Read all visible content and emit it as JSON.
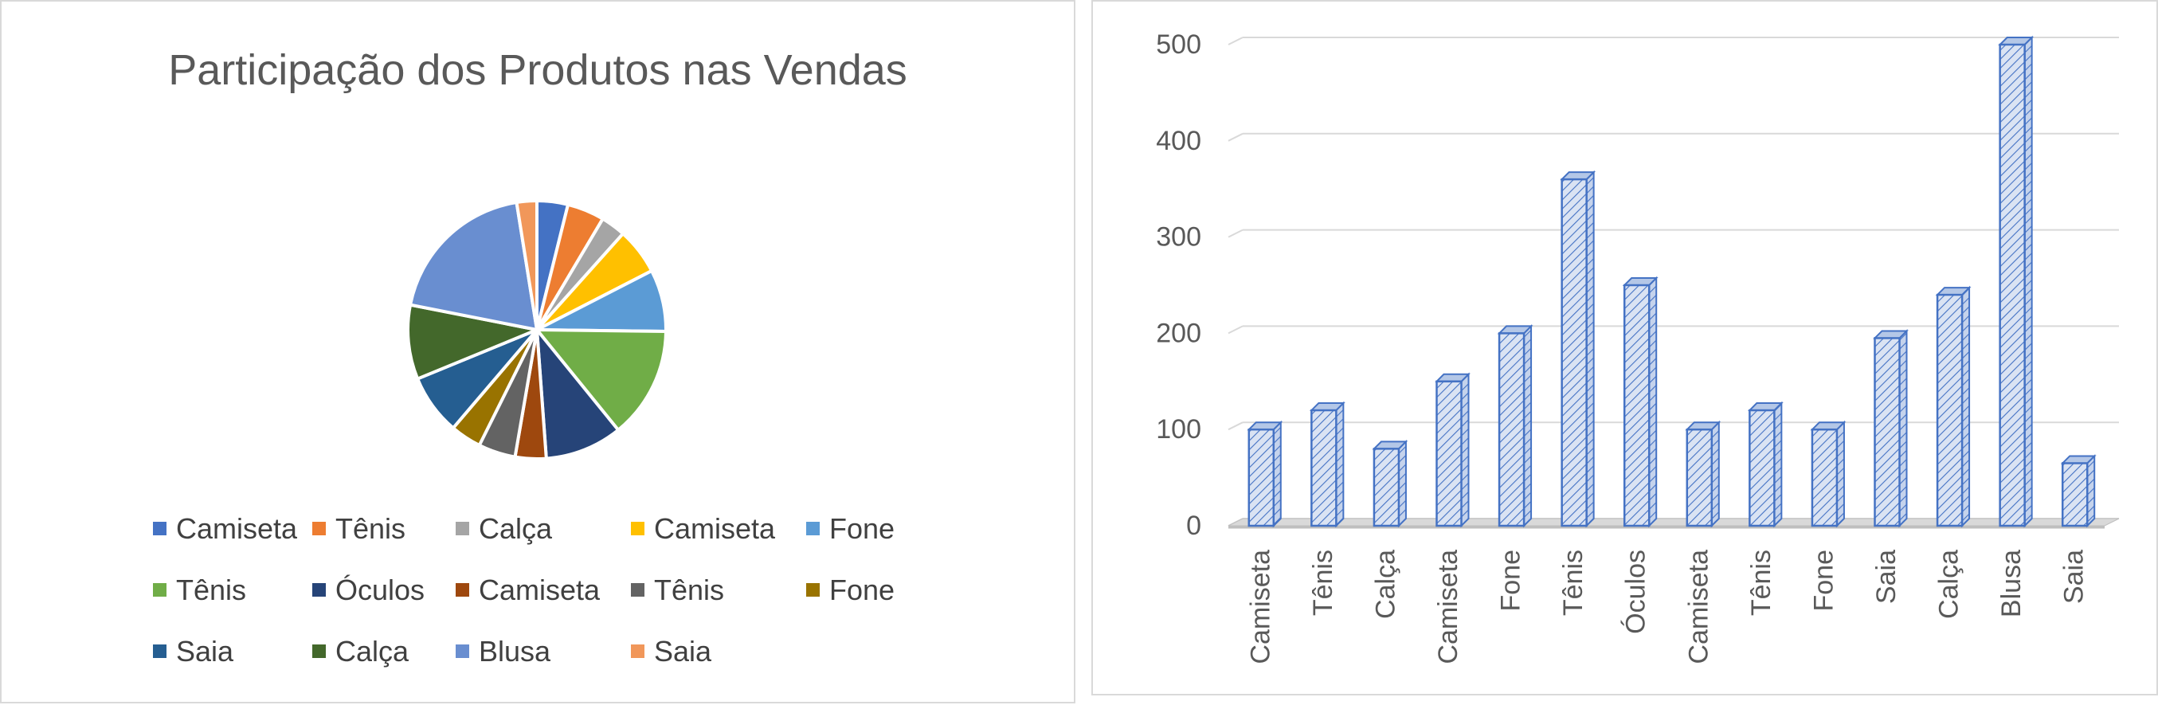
{
  "chart_data": [
    {
      "type": "pie",
      "title": "Participação dos Produtos nas Vendas",
      "categories": [
        "Camiseta",
        "Tênis",
        "Calça",
        "Camiseta",
        "Fone",
        "Tênis",
        "Óculos",
        "Camiseta",
        "Tênis",
        "Fone",
        "Saia",
        "Calça",
        "Blusa",
        "Saia"
      ],
      "values": [
        100,
        120,
        80,
        150,
        200,
        360,
        250,
        100,
        120,
        100,
        195,
        240,
        500,
        65
      ],
      "colors": [
        "#4472c4",
        "#ed7d31",
        "#a5a5a5",
        "#ffc000",
        "#5b9bd5",
        "#70ad47",
        "#264478",
        "#9e480e",
        "#636363",
        "#997300",
        "#255e91",
        "#43682b",
        "#698ed0",
        "#f1975a"
      ],
      "legend_position": "bottom"
    },
    {
      "type": "bar",
      "style": "3d-column-hatched",
      "categories": [
        "Camiseta",
        "Tênis",
        "Calça",
        "Camiseta",
        "Fone",
        "Tênis",
        "Óculos",
        "Camiseta",
        "Tênis",
        "Fone",
        "Saia",
        "Calça",
        "Blusa",
        "Saia"
      ],
      "values": [
        100,
        120,
        80,
        150,
        200,
        360,
        250,
        100,
        120,
        100,
        195,
        240,
        500,
        65
      ],
      "ylim": [
        0,
        500
      ],
      "yticks": [
        0,
        100,
        200,
        300,
        400,
        500
      ],
      "grid": true,
      "bar_color": "#4472c4",
      "bar_fill": "#dae3f3"
    }
  ]
}
